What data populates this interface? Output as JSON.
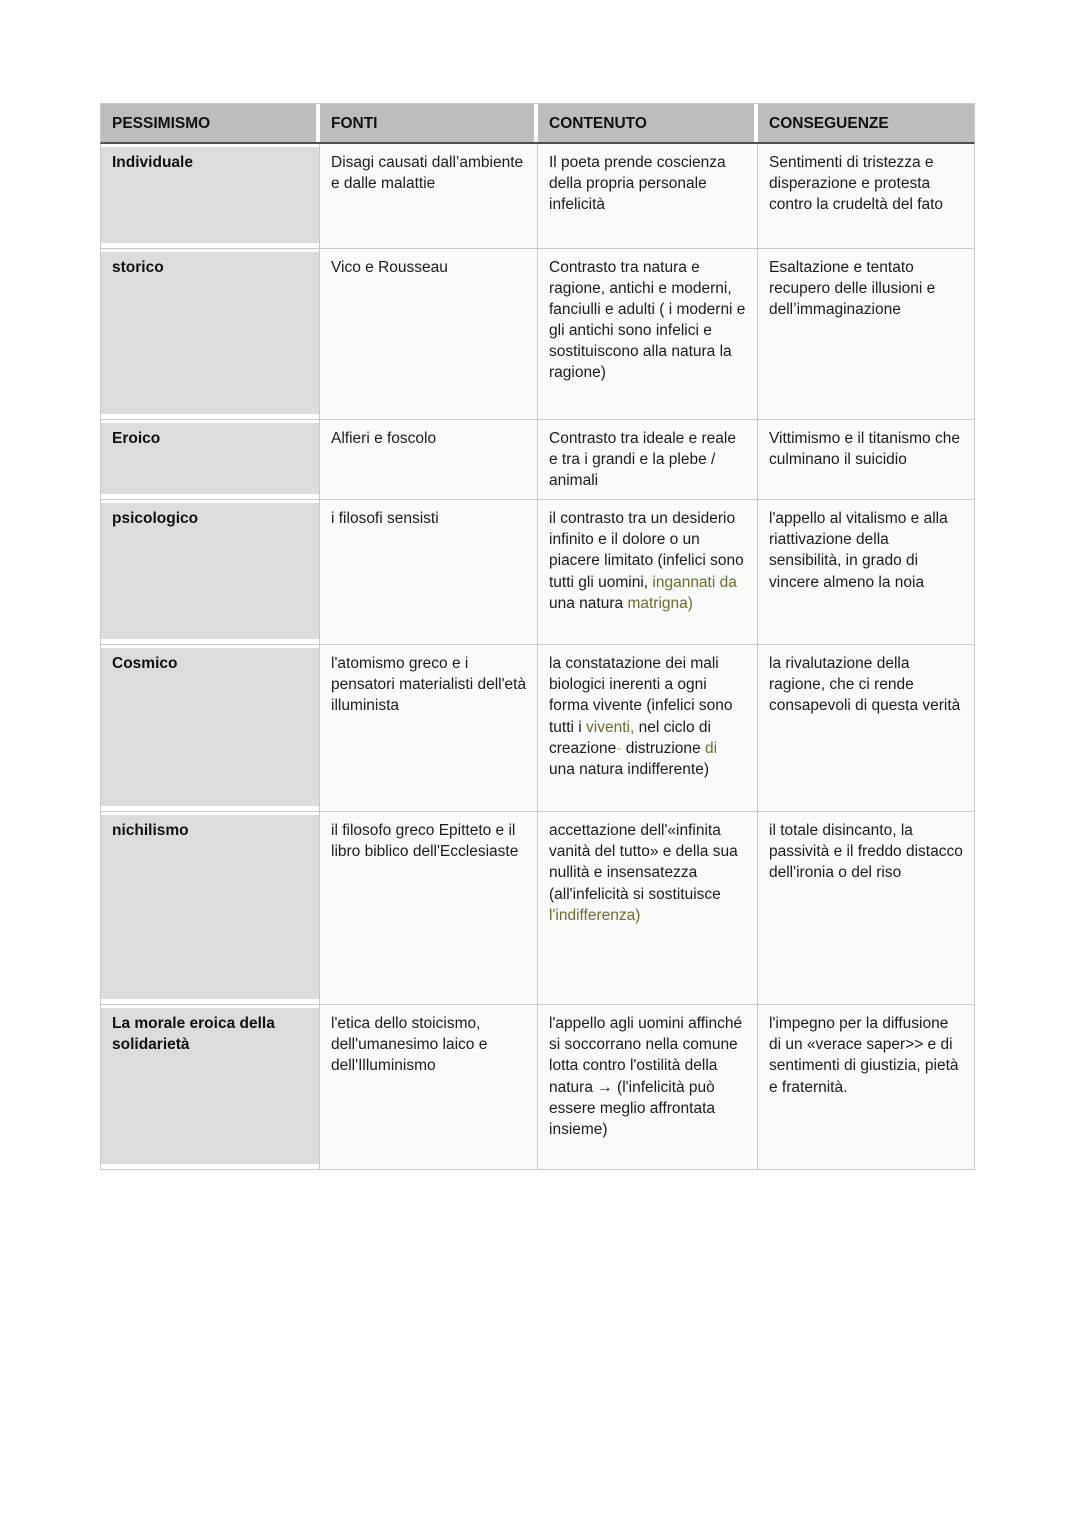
{
  "colors": {
    "page_bg": "#ffffff",
    "header_bg": "#bcbebd",
    "label_bg": "#dcdcdc",
    "cell_bg": "#fafafa",
    "border": "#c9c9c9",
    "header_rule": "#515151",
    "text": "#1c1c1c",
    "olive": "#6e6c2d",
    "lime": "#c3c24a"
  },
  "table": {
    "headers": [
      "PESSIMISMO",
      "FONTI",
      "CONTENUTO",
      "CONSEGUENZE"
    ],
    "rows": [
      {
        "label": "Individuale",
        "fonti": [
          {
            "t": "Disagi causati dall’ambiente e dalle malattie"
          }
        ],
        "contenuto": [
          {
            "t": "Il poeta prende coscienza della propria personale infelicità"
          }
        ],
        "conseguenze": [
          {
            "t": "Sentimenti di tristezza e disperazione e protesta contro la crudeltà del fato"
          }
        ]
      },
      {
        "label": "storico",
        "fonti": [
          {
            "t": "Vico e Rousseau"
          }
        ],
        "contenuto": [
          {
            "t": "Contrasto tra natura e ragione, antichi e moderni, fanciulli e adulti ( i moderni e gli antichi sono infelici e sostituiscono alla natura la ragione)"
          }
        ],
        "conseguenze": [
          {
            "t": "Esaltazione e tentato recupero delle illusioni e dell’immaginazione"
          }
        ]
      },
      {
        "label": "Eroico",
        "fonti": [
          {
            "t": "Alfieri e foscolo"
          }
        ],
        "contenuto": [
          {
            "t": "Contrasto tra ideale e reale e tra i grandi e la plebe / animali"
          }
        ],
        "conseguenze": [
          {
            "t": "Vittimismo e il titanismo che culminano il suicidio"
          }
        ]
      },
      {
        "label": "psicologico",
        "fonti": [
          {
            "t": "i filosofi sensisti"
          }
        ],
        "contenuto": [
          {
            "t": "il contrasto tra un desiderio infinito e il dolore o un piacere limitato (infelici sono tutti gli uomini, "
          },
          {
            "t": "ingannati da",
            "c": "olive"
          },
          {
            "t": " una natura "
          },
          {
            "t": "matrigna)",
            "c": "olive"
          }
        ],
        "conseguenze": [
          {
            "t": "l'appello al vitalismo e alla riattivazione della sensibilità, in grado di vincere almeno la noia"
          }
        ]
      },
      {
        "label": "Cosmico",
        "fonti": [
          {
            "t": "l'atomismo greco e i pensatori materialisti dell'età illuminista"
          }
        ],
        "contenuto": [
          {
            "t": "la constatazione dei mali biologici inerenti a ogni forma vivente (infelici sono tutti i "
          },
          {
            "t": "viventi,",
            "c": "olive"
          },
          {
            "t": " nel ciclo di creazione"
          },
          {
            "t": "-",
            "c": "lime"
          },
          {
            "t": " distruzione "
          },
          {
            "t": "di",
            "c": "olive"
          },
          {
            "t": " una natura indifferente)"
          }
        ],
        "conseguenze": [
          {
            "t": "la rivalutazione della ragione, che ci rende consapevoli di questa verità"
          }
        ]
      },
      {
        "label": "nichilismo",
        "fonti": [
          {
            "t": "il filosofo greco Epitteto e il libro biblico dell'Ecclesiaste"
          }
        ],
        "contenuto": [
          {
            "t": "accettazione dell'«infinita vanità del tutto» e della sua nullità e insensatezza (all'infelicità si sostituisce "
          },
          {
            "t": "l'indifferenza)",
            "c": "olive"
          }
        ],
        "conseguenze": [
          {
            "t": "il totale disincanto, la passività e il freddo distacco dell'ironia o del riso"
          }
        ]
      },
      {
        "label": "La morale eroica della solidarietà",
        "fonti": [
          {
            "t": "l'etica dello stoicismo, dell'umanesimo laico e dell'Illuminismo"
          }
        ],
        "contenuto": [
          {
            "t": "l'appello agli uomini affinché si soccorrano nella comune lotta contro l'ostilità della natura → (l'infelicità può essere meglio affrontata insieme)"
          }
        ],
        "conseguenze": [
          {
            "t": "l'impegno per la diffusione di un «verace saper>> e di sentimenti di giustizia, pietà e fraternità."
          }
        ]
      }
    ]
  }
}
